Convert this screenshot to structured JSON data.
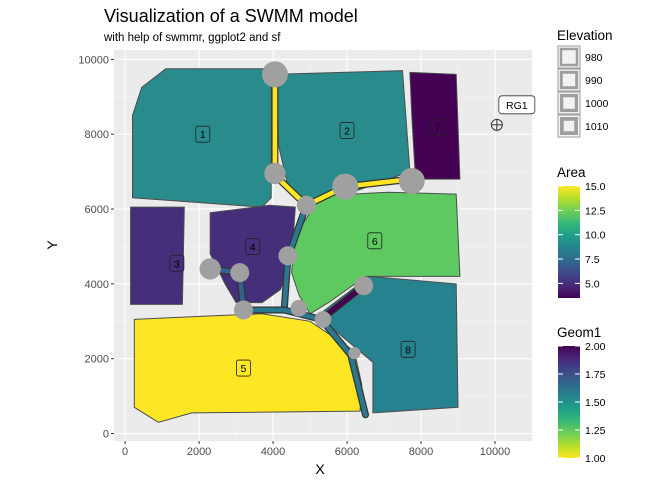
{
  "chart_data": {
    "type": "map",
    "title": "Visualization of a SWMM model",
    "subtitle": "with help of swmmr, ggplot2 and sf",
    "xlabel": "X",
    "ylabel": "Y",
    "xlim": [
      -300,
      11000
    ],
    "ylim": [
      -200,
      10250
    ],
    "x_ticks": [
      0,
      2000,
      4000,
      6000,
      8000,
      10000
    ],
    "y_ticks": [
      0,
      2000,
      4000,
      6000,
      8000,
      10000
    ],
    "grid": true,
    "panel_background": "#ebebeb",
    "subcatchments": [
      {
        "label": "1",
        "area": 10.0,
        "color": "#2a8b8c",
        "label_x": 2100,
        "label_y": 8000,
        "polygon": [
          [
            450,
            9250
          ],
          [
            1100,
            9750
          ],
          [
            3950,
            9750
          ],
          [
            3950,
            6300
          ],
          [
            3700,
            6050
          ],
          [
            200,
            6300
          ],
          [
            200,
            8500
          ]
        ]
      },
      {
        "label": "2",
        "area": 10.0,
        "color": "#2a8b8c",
        "label_x": 6000,
        "label_y": 8100,
        "polygon": [
          [
            4100,
            9600
          ],
          [
            7500,
            9700
          ],
          [
            7700,
            7000
          ],
          [
            6000,
            6400
          ],
          [
            5300,
            6200
          ],
          [
            4900,
            6100
          ],
          [
            4400,
            6600
          ],
          [
            4150,
            7700
          ]
        ]
      },
      {
        "label": "3",
        "area": 5.0,
        "color": "#452e7a",
        "label_x": 1400,
        "label_y": 4550,
        "polygon": [
          [
            150,
            6050
          ],
          [
            1600,
            6050
          ],
          [
            1550,
            3450
          ],
          [
            150,
            3450
          ]
        ]
      },
      {
        "label": "4",
        "area": 5.0,
        "color": "#452e7a",
        "label_x": 3450,
        "label_y": 5000,
        "polygon": [
          [
            2300,
            5900
          ],
          [
            3900,
            6100
          ],
          [
            4600,
            6050
          ],
          [
            4500,
            4600
          ],
          [
            4200,
            3850
          ],
          [
            3700,
            3500
          ],
          [
            3000,
            3500
          ],
          [
            2700,
            4000
          ],
          [
            2300,
            4800
          ]
        ]
      },
      {
        "label": "5",
        "area": 15.0,
        "color": "#fde724",
        "label_x": 3200,
        "label_y": 1750,
        "polygon": [
          [
            250,
            3050
          ],
          [
            2400,
            3150
          ],
          [
            3700,
            3200
          ],
          [
            5000,
            3000
          ],
          [
            6200,
            2200
          ],
          [
            6400,
            1300
          ],
          [
            6350,
            600
          ],
          [
            1800,
            550
          ],
          [
            900,
            300
          ],
          [
            250,
            700
          ]
        ]
      },
      {
        "label": "6",
        "area": 13.0,
        "color": "#5ec961",
        "label_x": 6750,
        "label_y": 5150,
        "polygon": [
          [
            5300,
            6350
          ],
          [
            7100,
            6450
          ],
          [
            8950,
            6400
          ],
          [
            9050,
            4200
          ],
          [
            6500,
            4200
          ],
          [
            5500,
            3500
          ],
          [
            5000,
            3200
          ],
          [
            4700,
            3700
          ],
          [
            4500,
            4300
          ],
          [
            4600,
            5300
          ]
        ]
      },
      {
        "label": "7",
        "area": 3.5,
        "color": "#440154",
        "label_x": 8450,
        "label_y": 8200,
        "polygon": [
          [
            7700,
            9650
          ],
          [
            8950,
            9600
          ],
          [
            9050,
            6800
          ],
          [
            7850,
            6800
          ],
          [
            7750,
            8500
          ]
        ]
      },
      {
        "label": "8",
        "area": 9.5,
        "color": "#26828e",
        "label_x": 7650,
        "label_y": 2250,
        "polygon": [
          [
            5200,
            3150
          ],
          [
            6600,
            4200
          ],
          [
            8950,
            4000
          ],
          [
            9000,
            700
          ],
          [
            6700,
            550
          ],
          [
            6700,
            1900
          ]
        ]
      }
    ],
    "conduits": [
      {
        "geom1": 1.0,
        "color": "#fde724",
        "points": [
          [
            4050,
            9600
          ],
          [
            4050,
            6900
          ]
        ]
      },
      {
        "geom1": 1.0,
        "color": "#fde724",
        "points": [
          [
            4050,
            6900
          ],
          [
            4900,
            6100
          ],
          [
            5950,
            6600
          ],
          [
            7750,
            6800
          ]
        ]
      },
      {
        "geom1": 1.6,
        "color": "#2a788e",
        "points": [
          [
            4900,
            6100
          ],
          [
            4400,
            4700
          ],
          [
            4300,
            3300
          ]
        ]
      },
      {
        "geom1": 1.4,
        "color": "#33638d",
        "points": [
          [
            2300,
            4400
          ],
          [
            3100,
            4300
          ],
          [
            3200,
            3300
          ]
        ]
      },
      {
        "geom1": 1.5,
        "color": "#2a788e",
        "points": [
          [
            3200,
            3300
          ],
          [
            4300,
            3300
          ],
          [
            5300,
            3050
          ],
          [
            6100,
            2100
          ],
          [
            6500,
            500
          ]
        ]
      },
      {
        "geom1": 2.0,
        "color": "#440154",
        "points": [
          [
            6450,
            3950
          ],
          [
            5300,
            3050
          ]
        ]
      }
    ],
    "junctions": [
      {
        "x": 4050,
        "y": 9600,
        "elevation": 1010
      },
      {
        "x": 4050,
        "y": 6950,
        "elevation": 1000
      },
      {
        "x": 4900,
        "y": 6100,
        "elevation": 995
      },
      {
        "x": 5950,
        "y": 6600,
        "elevation": 1010
      },
      {
        "x": 7750,
        "y": 6750,
        "elevation": 1010
      },
      {
        "x": 4400,
        "y": 4750,
        "elevation": 995
      },
      {
        "x": 2300,
        "y": 4400,
        "elevation": 1000
      },
      {
        "x": 3100,
        "y": 4300,
        "elevation": 995
      },
      {
        "x": 6450,
        "y": 3950,
        "elevation": 995
      },
      {
        "x": 3200,
        "y": 3300,
        "elevation": 995
      },
      {
        "x": 4700,
        "y": 3350,
        "elevation": 990
      },
      {
        "x": 5350,
        "y": 3050,
        "elevation": 990
      },
      {
        "x": 6200,
        "y": 2150,
        "elevation": 980
      }
    ],
    "raingage": {
      "label": "RG1",
      "x": 10050,
      "y": 8250
    },
    "legends": {
      "elevation": {
        "title": "Elevation",
        "labels": [
          "980",
          "990",
          "1000",
          "1010"
        ]
      },
      "area": {
        "title": "Area",
        "labels": [
          "15.0",
          "12.5",
          "10.0",
          "7.5",
          "5.0"
        ],
        "values": [
          15.0,
          12.5,
          10.0,
          7.5,
          5.0
        ],
        "range": [
          3.5,
          15.0
        ]
      },
      "geom1": {
        "title": "Geom1",
        "labels": [
          "2.00",
          "1.75",
          "1.50",
          "1.25",
          "1.00"
        ],
        "values": [
          2.0,
          1.75,
          1.5,
          1.25,
          1.0
        ],
        "range": [
          1.0,
          2.0
        ]
      }
    },
    "colors": {
      "viridis": [
        "#440154",
        "#482878",
        "#3e4989",
        "#31688e",
        "#26828e",
        "#1f9e89",
        "#35b779",
        "#6ece58",
        "#b5de2b",
        "#fde725"
      ],
      "junction_fill": "#a0a0a0",
      "outline": "#4d4d4d"
    }
  }
}
